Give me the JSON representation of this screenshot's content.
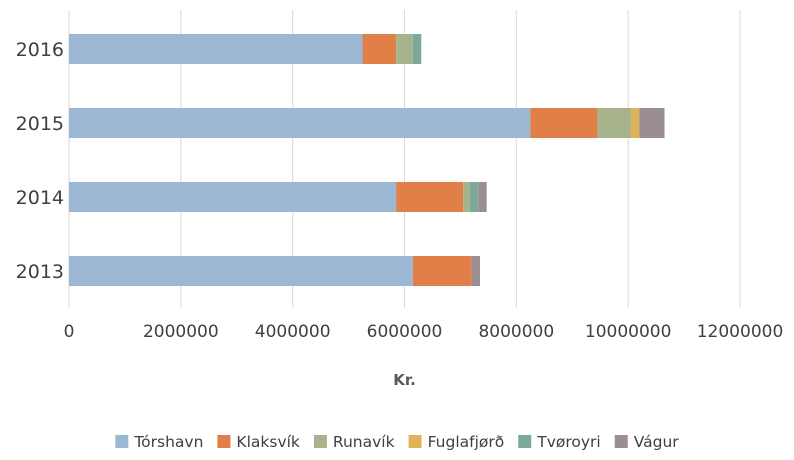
{
  "chart_data": {
    "type": "bar",
    "orientation": "horizontal",
    "stacked": true,
    "categories": [
      "2013",
      "2014",
      "2015",
      "2016"
    ],
    "series": [
      {
        "name": "Tórshavn",
        "color": "#9bb7d4",
        "values": [
          6150000,
          5850000,
          8250000,
          5250000
        ]
      },
      {
        "name": "Klaksvík",
        "color": "#e07f48",
        "values": [
          1050000,
          1200000,
          1200000,
          600000
        ]
      },
      {
        "name": "Runavík",
        "color": "#a6b38c",
        "values": [
          0,
          120000,
          600000,
          300000
        ]
      },
      {
        "name": "Fuglafjørð",
        "color": "#e0b35a",
        "values": [
          0,
          0,
          150000,
          0
        ]
      },
      {
        "name": "Tvøroyri",
        "color": "#7da99a",
        "values": [
          0,
          150000,
          0,
          150000
        ]
      },
      {
        "name": "Vágur",
        "color": "#9a8e91",
        "values": [
          150000,
          150000,
          450000,
          0
        ]
      }
    ],
    "xlabel": "Kr.",
    "xlim": [
      0,
      12000000
    ],
    "xticks": [
      "0",
      "2000000",
      "4000000",
      "6000000",
      "8000000",
      "10000000",
      "12000000"
    ],
    "grid": "vertical",
    "legend": "bottom"
  }
}
